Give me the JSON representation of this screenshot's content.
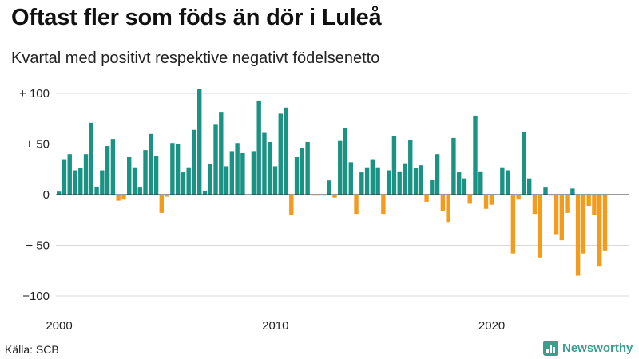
{
  "title": "Oftast fler som föds än dör i Luleå",
  "subtitle": "Kvartal med positivt respektive negativt födelsenetto",
  "source": "Källa: SCB",
  "brand": {
    "name": "Newsworthy",
    "icon": "bar-chart-logo-icon"
  },
  "colors": {
    "positive": "#1a9384",
    "negative": "#f29b1d",
    "grid": "#d9d9d9",
    "baseline": "#333333"
  },
  "chart_data": {
    "type": "bar",
    "x_start_year": 2000,
    "quarters_per_year": 4,
    "ylim": [
      -100,
      100
    ],
    "y_ticks": [
      {
        "value": 100,
        "label": "+ 100"
      },
      {
        "value": 50,
        "label": "+  50"
      },
      {
        "value": 0,
        "label": "0"
      },
      {
        "value": -50,
        "label": "− 50"
      },
      {
        "value": -100,
        "label": "−100"
      }
    ],
    "x_ticks": [
      {
        "year": 2000,
        "label": "2000"
      },
      {
        "year": 2010,
        "label": "2010"
      },
      {
        "year": 2020,
        "label": "2020"
      }
    ],
    "values": [
      3,
      35,
      40,
      24,
      26,
      40,
      71,
      8,
      24,
      48,
      55,
      -6,
      -5,
      37,
      27,
      7,
      44,
      60,
      38,
      -18,
      -2,
      51,
      50,
      22,
      27,
      64,
      104,
      4,
      30,
      69,
      81,
      28,
      43,
      51,
      41,
      0,
      43,
      93,
      61,
      52,
      28,
      80,
      86,
      -20,
      37,
      46,
      52,
      -1,
      -1,
      -1,
      14,
      -3,
      53,
      66,
      32,
      -19,
      22,
      27,
      35,
      27,
      -19,
      24,
      58,
      23,
      31,
      54,
      26,
      29,
      -7,
      15,
      40,
      -16,
      -27,
      56,
      22,
      16,
      -9,
      78,
      23,
      -14,
      -10,
      0,
      27,
      24,
      -58,
      -5,
      62,
      16,
      -19,
      -62,
      7,
      -1,
      -39,
      -45,
      -18,
      6,
      -80,
      -58,
      -11,
      -20,
      -71,
      -55
    ]
  }
}
